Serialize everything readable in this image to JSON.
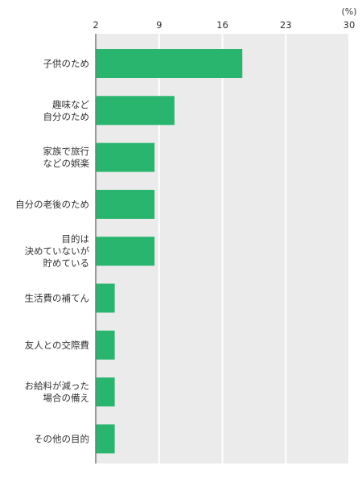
{
  "chart_data": {
    "type": "bar",
    "orientation": "horizontal",
    "unit": "(%)",
    "xlim": [
      2,
      30
    ],
    "ticks": [
      2,
      9,
      16,
      23,
      30
    ],
    "grid": true,
    "categories": [
      [
        "子供のため"
      ],
      [
        "趣味など",
        "自分のため"
      ],
      [
        "家族で旅行",
        "などの娯楽"
      ],
      [
        "自分の老後のため"
      ],
      [
        "目的は",
        "決めていないが",
        "貯めている"
      ],
      [
        "生活費の補てん"
      ],
      [
        "友人との交際費"
      ],
      [
        "お給料が減った",
        "場合の備え"
      ],
      [
        "その他の目的"
      ]
    ],
    "values": [
      18.2,
      10.7,
      8.5,
      8.5,
      8.5,
      4.1,
      4.1,
      4.1,
      4.1
    ],
    "colors": {
      "bar": "#2ab56f",
      "plot_bg": "#ebebeb",
      "grid": "#ffffff",
      "axis": "#7a7a7a"
    }
  }
}
